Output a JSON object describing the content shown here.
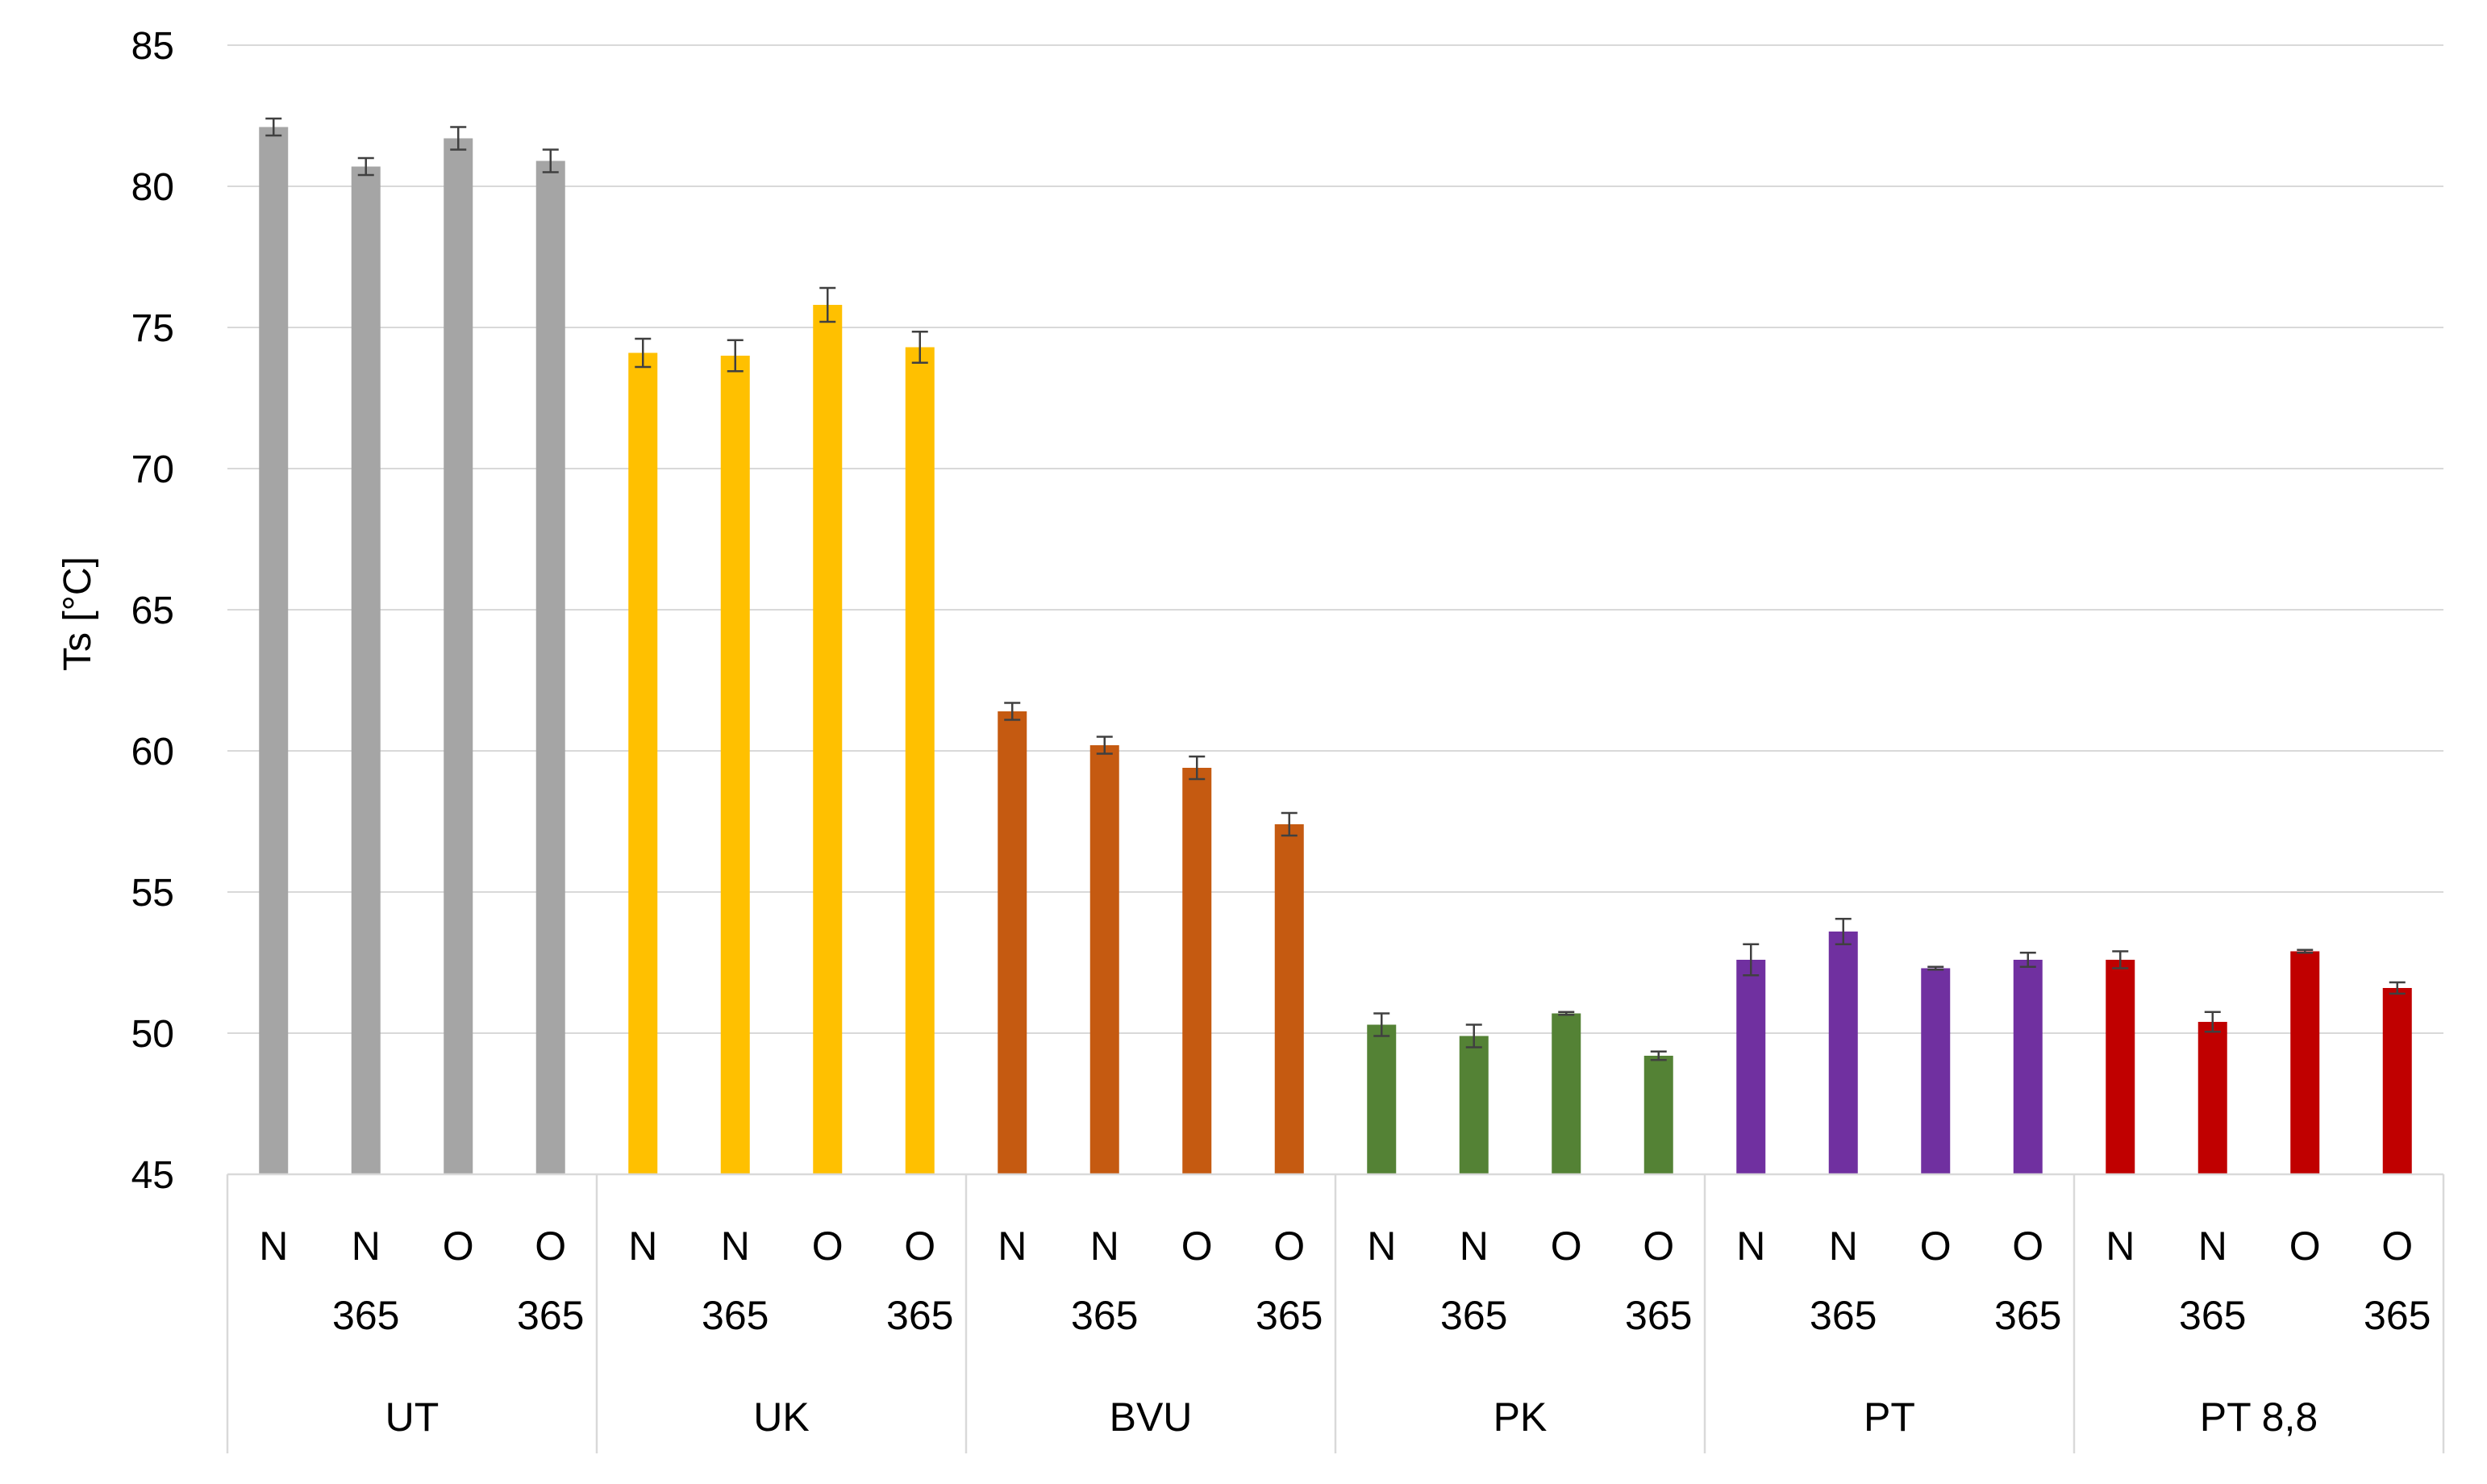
{
  "chart_data": {
    "type": "bar",
    "ylabel": "Ts [°C]",
    "ylim": [
      45,
      85
    ],
    "yticks": [
      45,
      50,
      55,
      60,
      65,
      70,
      75,
      80,
      85
    ],
    "grid": true,
    "legend": "none",
    "groups": [
      {
        "name": "UT",
        "color": "#a5a5a5",
        "bars": [
          {
            "label1": "N",
            "label2": "",
            "value": 82.1,
            "error": 0.3
          },
          {
            "label1": "N",
            "label2": "365",
            "value": 80.7,
            "error": 0.3
          },
          {
            "label1": "O",
            "label2": "",
            "value": 81.7,
            "error": 0.4
          },
          {
            "label1": "O",
            "label2": "365",
            "value": 80.9,
            "error": 0.4
          }
        ]
      },
      {
        "name": "UK",
        "color": "#ffc000",
        "bars": [
          {
            "label1": "N",
            "label2": "",
            "value": 74.1,
            "error": 0.5
          },
          {
            "label1": "N",
            "label2": "365",
            "value": 74.0,
            "error": 0.55
          },
          {
            "label1": "O",
            "label2": "",
            "value": 75.8,
            "error": 0.6
          },
          {
            "label1": "O",
            "label2": "365",
            "value": 74.3,
            "error": 0.55
          }
        ]
      },
      {
        "name": "BVU",
        "color": "#c55a11",
        "bars": [
          {
            "label1": "N",
            "label2": "",
            "value": 61.4,
            "error": 0.3
          },
          {
            "label1": "N",
            "label2": "365",
            "value": 60.2,
            "error": 0.3
          },
          {
            "label1": "O",
            "label2": "",
            "value": 59.4,
            "error": 0.4
          },
          {
            "label1": "O",
            "label2": "365",
            "value": 57.4,
            "error": 0.4
          }
        ]
      },
      {
        "name": "PK",
        "color": "#548235",
        "bars": [
          {
            "label1": "N",
            "label2": "",
            "value": 50.3,
            "error": 0.4
          },
          {
            "label1": "N",
            "label2": "365",
            "value": 49.9,
            "error": 0.4
          },
          {
            "label1": "O",
            "label2": "",
            "value": 50.7,
            "error": 0.05
          },
          {
            "label1": "O",
            "label2": "365",
            "value": 49.2,
            "error": 0.15
          }
        ]
      },
      {
        "name": "PT",
        "color": "#7030a0",
        "bars": [
          {
            "label1": "N",
            "label2": "",
            "value": 52.6,
            "error": 0.55
          },
          {
            "label1": "N",
            "label2": "365",
            "value": 53.6,
            "error": 0.45
          },
          {
            "label1": "O",
            "label2": "",
            "value": 52.3,
            "error": 0.05
          },
          {
            "label1": "O",
            "label2": "365",
            "value": 52.6,
            "error": 0.25
          }
        ]
      },
      {
        "name": "PT 8,8",
        "color": "#c00000",
        "bars": [
          {
            "label1": "N",
            "label2": "",
            "value": 52.6,
            "error": 0.3
          },
          {
            "label1": "N",
            "label2": "365",
            "value": 50.4,
            "error": 0.35
          },
          {
            "label1": "O",
            "label2": "",
            "value": 52.9,
            "error": 0.05
          },
          {
            "label1": "O",
            "label2": "365",
            "value": 51.6,
            "error": 0.2
          }
        ]
      }
    ]
  }
}
